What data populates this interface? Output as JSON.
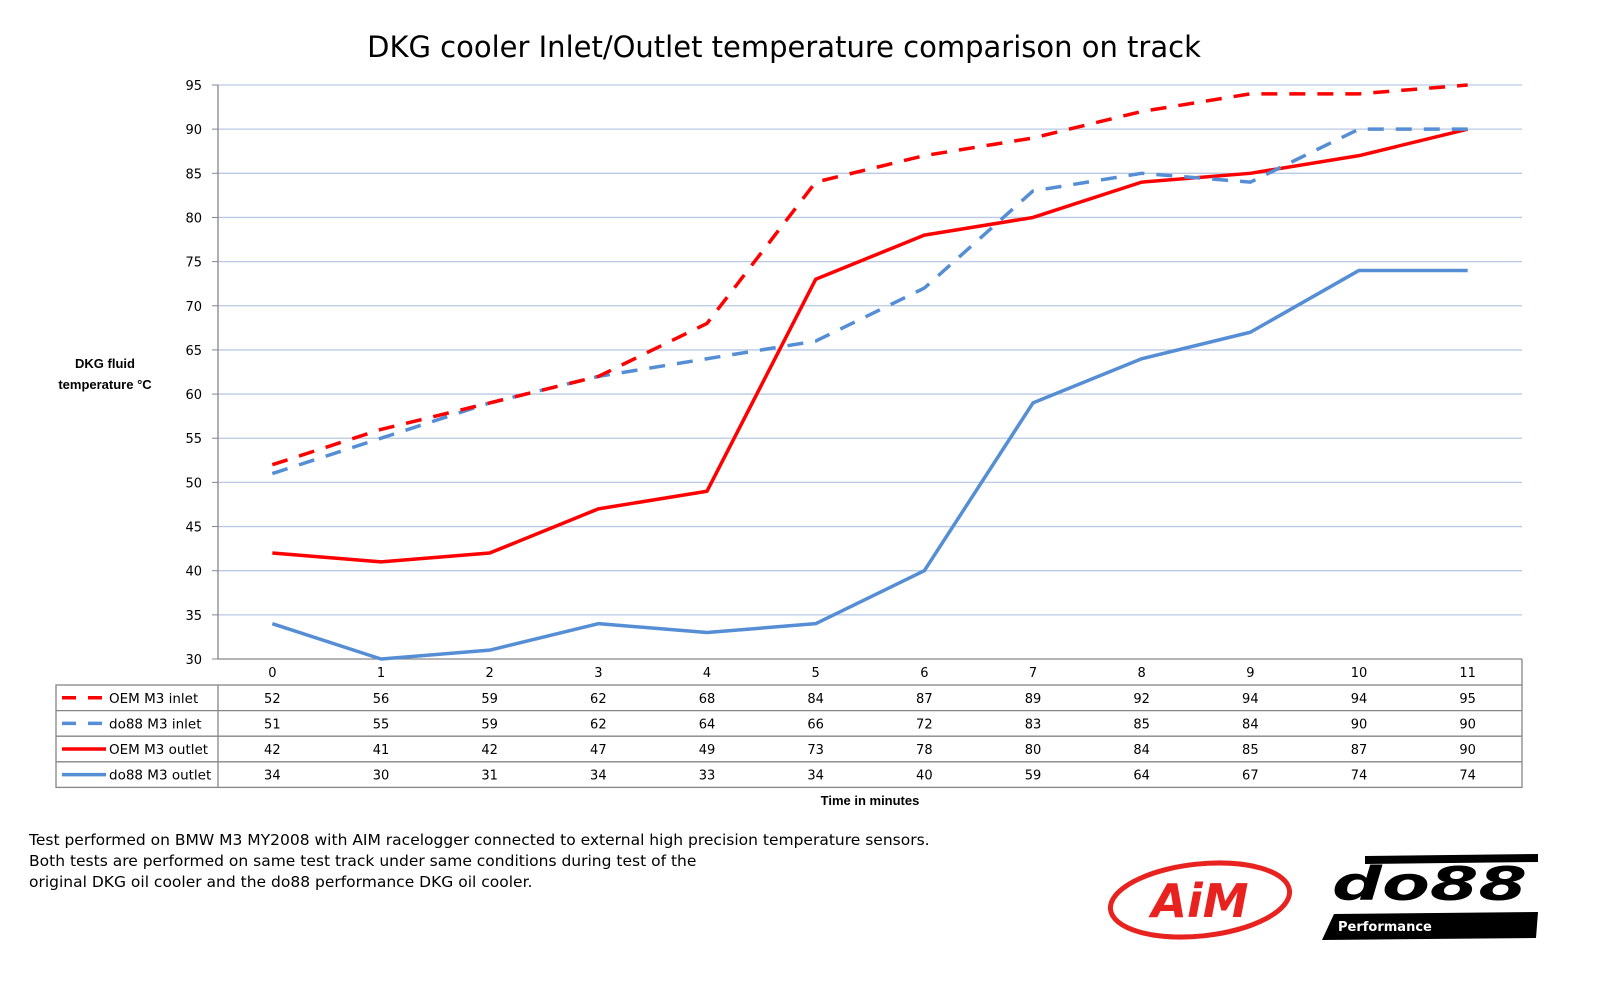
{
  "chart_data": {
    "type": "line",
    "title": "DKG cooler Inlet/Outlet temperature comparison on track",
    "ylabel": "DKG fluid temperature °C",
    "xlabel": "Time in minutes",
    "categories": [
      "0",
      "1",
      "2",
      "3",
      "4",
      "5",
      "6",
      "7",
      "8",
      "9",
      "10",
      "11"
    ],
    "ylim": [
      30,
      95
    ],
    "yticks": [
      30,
      35,
      40,
      45,
      50,
      55,
      60,
      65,
      70,
      75,
      80,
      85,
      90,
      95
    ],
    "grid": true,
    "legend": "data-table-bottom",
    "series": [
      {
        "name": "OEM M3 inlet",
        "color": "#ff0000",
        "style": "dashed",
        "values": [
          52,
          56,
          59,
          62,
          68,
          84,
          87,
          89,
          92,
          94,
          94,
          95
        ]
      },
      {
        "name": "do88 M3 inlet",
        "color": "#558ed5",
        "style": "dashed",
        "values": [
          51,
          55,
          59,
          62,
          64,
          66,
          72,
          83,
          85,
          84,
          90,
          90
        ]
      },
      {
        "name": "OEM M3 outlet",
        "color": "#ff0000",
        "style": "solid",
        "values": [
          42,
          41,
          42,
          47,
          49,
          73,
          78,
          80,
          84,
          85,
          87,
          90
        ]
      },
      {
        "name": "do88 M3 outlet",
        "color": "#558ed5",
        "style": "solid",
        "values": [
          34,
          30,
          31,
          34,
          33,
          34,
          40,
          59,
          64,
          67,
          74,
          74
        ]
      }
    ]
  },
  "note": [
    "Test performed on BMW M3 MY2008 with AIM racelogger connected to external high precision temperature sensors.",
    "Both tests are performed on same test track under same conditions during test of the",
    "original DKG oil cooler and the do88 performance DKG oil cooler."
  ],
  "logos": {
    "aim": "AiM",
    "do88": "do88",
    "do88_sub": "Performance"
  }
}
